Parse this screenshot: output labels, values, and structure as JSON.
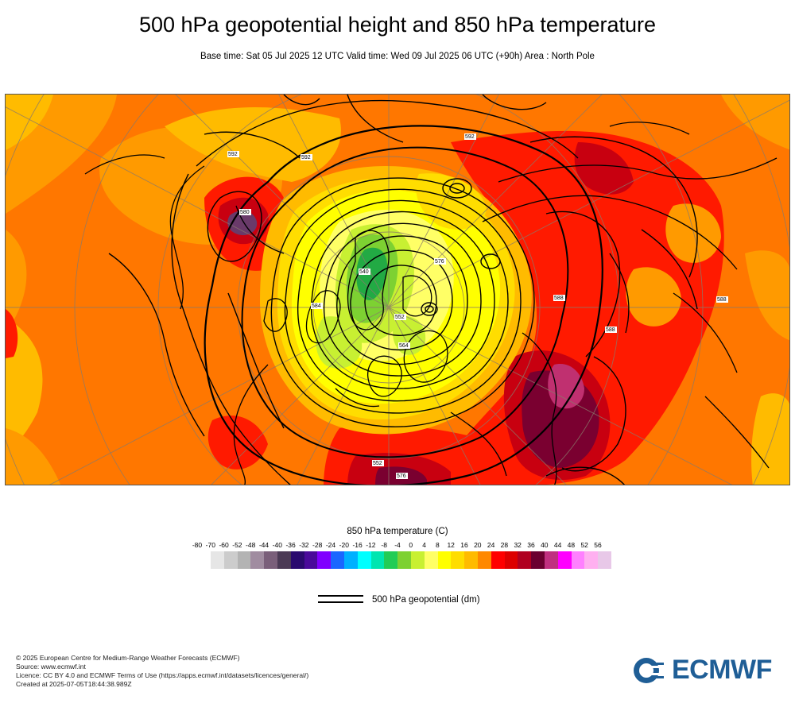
{
  "header": {
    "title": "500 hPa geopotential height and 850 hPa temperature",
    "subtitle": "Base time: Sat 05 Jul 2025 12 UTC Valid time: Wed 09 Jul 2025 06 UTC (+90h) Area : North Pole"
  },
  "legend": {
    "title": "850 hPa temperature (C)",
    "ticks": [
      "-80",
      "-70",
      "-60",
      "-52",
      "-48",
      "-44",
      "-40",
      "-36",
      "-32",
      "-28",
      "-24",
      "-20",
      "-16",
      "-12",
      "-8",
      "-4",
      "0",
      "4",
      "8",
      "12",
      "16",
      "20",
      "24",
      "28",
      "32",
      "36",
      "40",
      "44",
      "48",
      "52",
      "56"
    ],
    "colors": [
      "#e6e6e6",
      "#cccccc",
      "#b3b3b3",
      "#a08ca0",
      "#7a5f7a",
      "#4b3a55",
      "#2a0a6e",
      "#4a0a9a",
      "#8000ff",
      "#1a66ff",
      "#00b0ff",
      "#00ffff",
      "#00e5b0",
      "#22cc55",
      "#7dd132",
      "#c8f032",
      "#ffff66",
      "#ffff00",
      "#ffdd00",
      "#ffbb00",
      "#ff8800",
      "#ff0000",
      "#dd0000",
      "#b00020",
      "#6a0030",
      "#c03080",
      "#ff00ff",
      "#ff80ff",
      "#ffb0f0",
      "#e8c8e8",
      "#e6e6e6"
    ]
  },
  "geo_legend": {
    "label": "500 hPa geopotential (dm)"
  },
  "map": {
    "contour_labels": [
      "592",
      "592",
      "592",
      "580",
      "584",
      "576",
      "540",
      "552",
      "564",
      "588",
      "588",
      "552",
      "576",
      "588"
    ],
    "palette": {
      "background": "#ff7700",
      "orange": "#ff9a00",
      "amber": "#ffbb00",
      "gold": "#ffdd00",
      "yellow": "#ffff00",
      "paleyellow": "#ffff66",
      "lime": "#c8f032",
      "green": "#7dd132",
      "darkgreen": "#22aa44",
      "red": "#ff1a00",
      "darkred": "#c80010",
      "maroon": "#7a0030",
      "pink": "#c03070",
      "purple": "#6a3a6a"
    }
  },
  "footer": {
    "lines": [
      "© 2025 European Centre for Medium-Range Weather Forecasts (ECMWF)",
      "Source: www.ecmwf.int",
      "Licence: CC BY 4.0 and ECMWF Terms of Use (https://apps.ecmwf.int/datasets/licences/general/)",
      "Created at 2025-07-05T18:44:38.989Z"
    ]
  },
  "logo": {
    "text": "ECMWF",
    "color": "#1f5e96"
  }
}
